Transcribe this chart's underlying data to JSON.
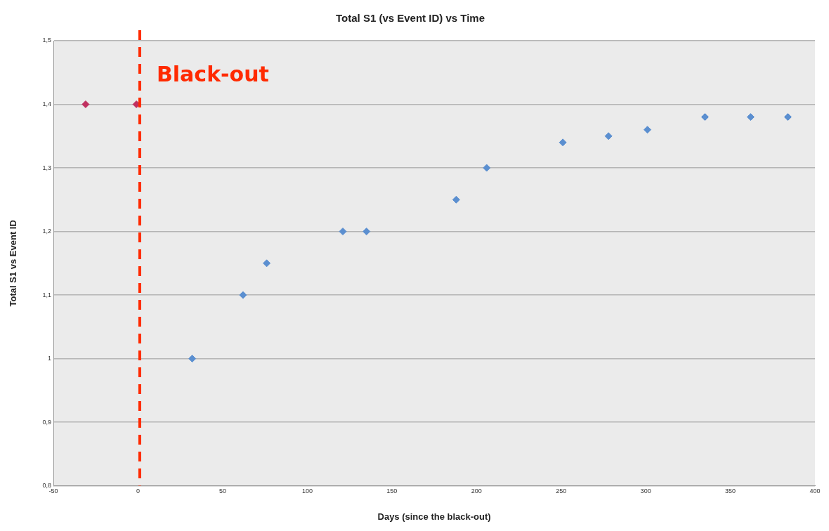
{
  "chart_data": {
    "type": "scatter",
    "title": "Total S1 (vs Event ID) vs Time",
    "xlabel": "Days (since the black-out)",
    "ylabel": "Total S1 vs Event ID",
    "x": [
      -31,
      -1,
      32,
      62,
      76,
      121,
      135,
      188,
      206,
      251,
      278,
      301,
      335,
      362,
      384
    ],
    "values": [
      1.4,
      1.4,
      1.0,
      1.1,
      1.15,
      1.2,
      1.2,
      1.25,
      1.3,
      1.34,
      1.35,
      1.36,
      1.38,
      1.38,
      1.38
    ],
    "colors": [
      "#c03060",
      "#c03060",
      "#5b8fd0",
      "#5b8fd0",
      "#5b8fd0",
      "#5b8fd0",
      "#5b8fd0",
      "#5b8fd0",
      "#5b8fd0",
      "#5b8fd0",
      "#5b8fd0",
      "#5b8fd0",
      "#5b8fd0",
      "#5b8fd0",
      "#5b8fd0"
    ],
    "marker": "diamond",
    "xlim": [
      -50,
      400
    ],
    "xticks": [
      -50,
      0,
      50,
      100,
      150,
      200,
      250,
      300,
      350,
      400
    ],
    "ylim": [
      0.8,
      1.5
    ],
    "yticks": [
      {
        "value": 0.8,
        "label": "0,8"
      },
      {
        "value": 0.9,
        "label": "0,9"
      },
      1,
      {
        "value": 1.1,
        "label": "1,1"
      },
      {
        "value": 1.2,
        "label": "1,2"
      },
      {
        "value": 1.3,
        "label": "1,3"
      },
      {
        "value": 1.4,
        "label": "1,4"
      },
      {
        "value": 1.5,
        "label": "1,5"
      }
    ],
    "grid": "y",
    "legend": false,
    "ref_lines": [
      {
        "axis": "x",
        "value": 1,
        "label": "Black-out",
        "color": "#ff2a00",
        "line_style": "dashed"
      }
    ]
  }
}
